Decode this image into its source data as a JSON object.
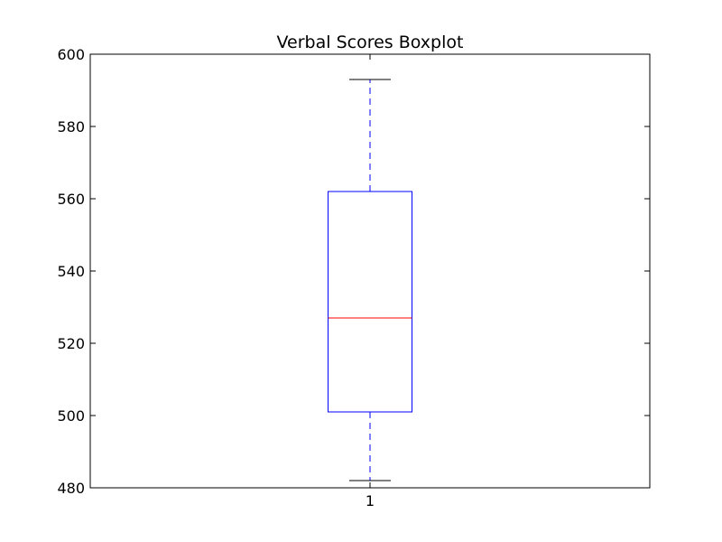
{
  "chart_data": {
    "type": "box",
    "title": "Verbal Scores Boxplot",
    "xlabel": "",
    "ylabel": "",
    "ylim": [
      480,
      600
    ],
    "y_ticks": [
      480,
      500,
      520,
      540,
      560,
      580,
      600
    ],
    "categories": [
      "1"
    ],
    "series": [
      {
        "whisker_low": 482,
        "q1": 501,
        "median": 527,
        "q3": 562,
        "whisker_high": 593
      }
    ],
    "grid": false,
    "colors": {
      "box": "#0000ff",
      "median": "#ff0000",
      "whisker_cap": "#000000",
      "frame": "#000000"
    }
  }
}
